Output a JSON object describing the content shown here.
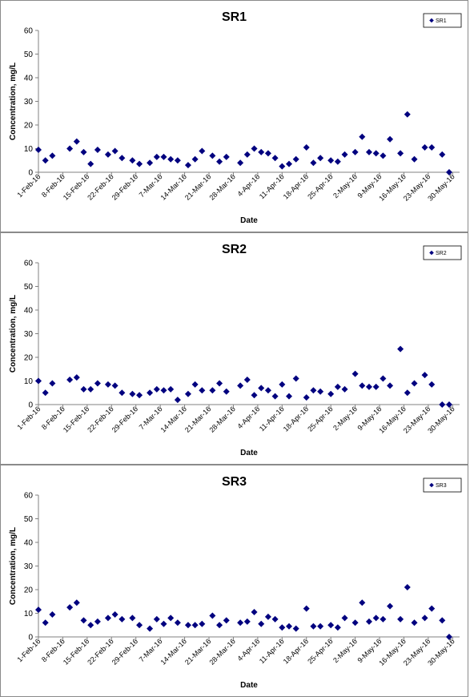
{
  "colors": {
    "marker": "#00007f",
    "axis": "#808080",
    "frame": "#8a8a8a"
  },
  "chart_data": [
    {
      "type": "scatter",
      "title": "SR1",
      "xlabel": "Date",
      "ylabel": "Concentration, mg/L",
      "ylim": [
        0,
        60
      ],
      "yticks": [
        "0",
        "10",
        "20",
        "30",
        "40",
        "50",
        "60"
      ],
      "xlim": [
        "2016-02-01",
        "2016-06-01"
      ],
      "xticks": [
        "1-Feb-16",
        "8-Feb-16",
        "15-Feb-16",
        "22-Feb-16",
        "29-Feb-16",
        "7-Mar-16",
        "14-Mar-16",
        "21-Mar-16",
        "28-Mar-16",
        "4-Apr-16",
        "11-Apr-16",
        "18-Apr-16",
        "25-Apr-16",
        "2-May-16",
        "9-May-16",
        "16-May-16",
        "23-May-16",
        "30-May-16"
      ],
      "grid": false,
      "legend": "top-right",
      "series": [
        {
          "name": "SR1",
          "x": [
            "2016-02-01",
            "2016-02-03",
            "2016-02-05",
            "2016-02-10",
            "2016-02-12",
            "2016-02-14",
            "2016-02-16",
            "2016-02-18",
            "2016-02-21",
            "2016-02-23",
            "2016-02-25",
            "2016-02-28",
            "2016-03-01",
            "2016-03-04",
            "2016-03-06",
            "2016-03-08",
            "2016-03-10",
            "2016-03-12",
            "2016-03-15",
            "2016-03-17",
            "2016-03-19",
            "2016-03-22",
            "2016-03-24",
            "2016-03-26",
            "2016-03-30",
            "2016-04-01",
            "2016-04-03",
            "2016-04-05",
            "2016-04-07",
            "2016-04-09",
            "2016-04-11",
            "2016-04-13",
            "2016-04-15",
            "2016-04-18",
            "2016-04-20",
            "2016-04-22",
            "2016-04-25",
            "2016-04-27",
            "2016-04-29",
            "2016-05-02",
            "2016-05-04",
            "2016-05-06",
            "2016-05-08",
            "2016-05-10",
            "2016-05-12",
            "2016-05-15",
            "2016-05-17",
            "2016-05-19",
            "2016-05-22",
            "2016-05-24",
            "2016-05-27",
            "2016-05-29"
          ],
          "y": [
            9.5,
            5,
            7,
            10,
            13,
            8.5,
            3.5,
            9.5,
            7.5,
            9,
            6,
            5,
            3.5,
            4,
            6.5,
            6.5,
            5.5,
            5,
            3,
            5.5,
            9,
            7,
            4.5,
            6.5,
            4,
            7.5,
            10,
            8.5,
            8,
            6,
            2.5,
            3.5,
            5.5,
            10.5,
            4,
            6,
            5,
            4.5,
            7.5,
            8.5,
            15,
            8.5,
            8,
            7,
            14,
            8,
            24.5,
            5.5,
            10.5,
            10.5,
            7.5,
            0
          ]
        }
      ]
    },
    {
      "type": "scatter",
      "title": "SR2",
      "xlabel": "Date",
      "ylabel": "Concentration, mg/L",
      "ylim": [
        0,
        60
      ],
      "yticks": [
        "0",
        "10",
        "20",
        "30",
        "40",
        "50",
        "60"
      ],
      "xlim": [
        "2016-02-01",
        "2016-06-01"
      ],
      "xticks": [
        "1-Feb-16",
        "8-Feb-16",
        "15-Feb-16",
        "22-Feb-16",
        "29-Feb-16",
        "7-Mar-16",
        "14-Mar-16",
        "21-Mar-16",
        "28-Mar-16",
        "4-Apr-16",
        "11-Apr-16",
        "18-Apr-16",
        "25-Apr-16",
        "2-May-16",
        "9-May-16",
        "16-May-16",
        "23-May-16",
        "30-May-16"
      ],
      "grid": false,
      "legend": "top-right",
      "series": [
        {
          "name": "SR2",
          "x": [
            "2016-02-01",
            "2016-02-03",
            "2016-02-05",
            "2016-02-10",
            "2016-02-12",
            "2016-02-14",
            "2016-02-16",
            "2016-02-18",
            "2016-02-21",
            "2016-02-23",
            "2016-02-25",
            "2016-02-28",
            "2016-03-01",
            "2016-03-04",
            "2016-03-06",
            "2016-03-08",
            "2016-03-10",
            "2016-03-12",
            "2016-03-15",
            "2016-03-17",
            "2016-03-19",
            "2016-03-22",
            "2016-03-24",
            "2016-03-26",
            "2016-03-30",
            "2016-04-01",
            "2016-04-03",
            "2016-04-05",
            "2016-04-07",
            "2016-04-09",
            "2016-04-11",
            "2016-04-13",
            "2016-04-15",
            "2016-04-18",
            "2016-04-20",
            "2016-04-22",
            "2016-04-25",
            "2016-04-27",
            "2016-04-29",
            "2016-05-02",
            "2016-05-04",
            "2016-05-06",
            "2016-05-08",
            "2016-05-10",
            "2016-05-12",
            "2016-05-15",
            "2016-05-17",
            "2016-05-19",
            "2016-05-22",
            "2016-05-24",
            "2016-05-27",
            "2016-05-29"
          ],
          "y": [
            10,
            5,
            9,
            10.5,
            11.5,
            6.5,
            6.5,
            9,
            8.5,
            8,
            5,
            4.5,
            4,
            5,
            6.5,
            6,
            6.5,
            2,
            4.5,
            8.5,
            6,
            6,
            9,
            5.5,
            8,
            10.5,
            4,
            7,
            6,
            3.5,
            8.5,
            3.5,
            11,
            3,
            6,
            5.5,
            4.5,
            7.5,
            6.5,
            13,
            8,
            7.5,
            7.5,
            11,
            8,
            23.5,
            5,
            9,
            12.5,
            8.5,
            0,
            0
          ]
        }
      ]
    },
    {
      "type": "scatter",
      "title": "SR3",
      "xlabel": "Date",
      "ylabel": "Concentration, mg/L",
      "ylim": [
        0,
        60
      ],
      "yticks": [
        "0",
        "10",
        "20",
        "30",
        "40",
        "50",
        "60"
      ],
      "xlim": [
        "2016-02-01",
        "2016-06-01"
      ],
      "xticks": [
        "1-Feb-16",
        "8-Feb-16",
        "15-Feb-16",
        "22-Feb-16",
        "29-Feb-16",
        "7-Mar-16",
        "14-Mar-16",
        "21-Mar-16",
        "28-Mar-16",
        "4-Apr-16",
        "11-Apr-16",
        "18-Apr-16",
        "25-Apr-16",
        "2-May-16",
        "9-May-16",
        "16-May-16",
        "23-May-16",
        "30-May-16"
      ],
      "grid": false,
      "legend": "top-right",
      "series": [
        {
          "name": "SR3",
          "x": [
            "2016-02-01",
            "2016-02-03",
            "2016-02-05",
            "2016-02-10",
            "2016-02-12",
            "2016-02-14",
            "2016-02-16",
            "2016-02-18",
            "2016-02-21",
            "2016-02-23",
            "2016-02-25",
            "2016-02-28",
            "2016-03-01",
            "2016-03-04",
            "2016-03-06",
            "2016-03-08",
            "2016-03-10",
            "2016-03-12",
            "2016-03-15",
            "2016-03-17",
            "2016-03-19",
            "2016-03-22",
            "2016-03-24",
            "2016-03-26",
            "2016-03-30",
            "2016-04-01",
            "2016-04-03",
            "2016-04-05",
            "2016-04-07",
            "2016-04-09",
            "2016-04-11",
            "2016-04-13",
            "2016-04-15",
            "2016-04-18",
            "2016-04-20",
            "2016-04-22",
            "2016-04-25",
            "2016-04-27",
            "2016-04-29",
            "2016-05-02",
            "2016-05-04",
            "2016-05-06",
            "2016-05-08",
            "2016-05-10",
            "2016-05-12",
            "2016-05-15",
            "2016-05-17",
            "2016-05-19",
            "2016-05-22",
            "2016-05-24",
            "2016-05-27",
            "2016-05-29"
          ],
          "y": [
            11.5,
            6,
            9.5,
            12.5,
            14.5,
            7,
            5,
            6.5,
            8,
            9.5,
            7.5,
            8,
            5,
            3.5,
            7.5,
            5.5,
            8,
            6,
            5,
            5,
            5.5,
            9,
            5,
            7,
            6,
            6.5,
            10.5,
            5.5,
            8.5,
            7.5,
            4,
            4.5,
            3.5,
            12,
            4.5,
            4.5,
            5,
            4,
            8,
            6,
            14.5,
            6.5,
            8,
            7.5,
            13,
            7.5,
            21,
            6,
            8,
            12,
            7,
            0
          ]
        }
      ]
    }
  ]
}
